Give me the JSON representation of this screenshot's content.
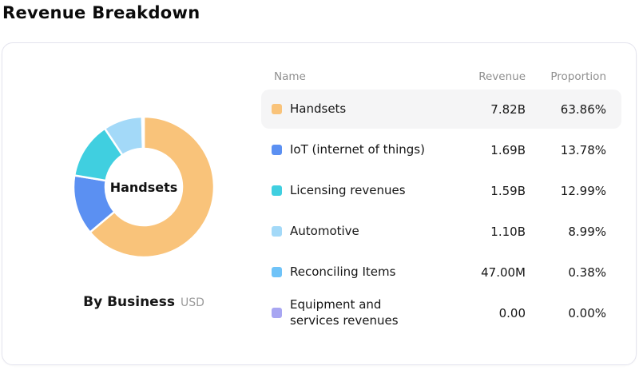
{
  "page": {
    "title": "Revenue Breakdown"
  },
  "caption": {
    "title": "By Business",
    "unit": "USD"
  },
  "table": {
    "headers": {
      "name": "Name",
      "revenue": "Revenue",
      "proportion": "Proportion"
    }
  },
  "chart_data": {
    "type": "pie",
    "subtype": "donut",
    "title": "By Business",
    "unit": "USD",
    "center_label": "Handsets",
    "start_angle_deg": 0,
    "direction": "clockwise",
    "inner_radius_ratio": 0.54,
    "legend_position": "right-table",
    "highlighted_series": "Handsets",
    "series": [
      {
        "name": "Handsets",
        "revenue": "7.82B",
        "proportion": "63.86%",
        "value": 63.86,
        "color": "#F9C37A"
      },
      {
        "name": "IoT (internet of things)",
        "revenue": "1.69B",
        "proportion": "13.78%",
        "value": 13.78,
        "color": "#5B90F2"
      },
      {
        "name": "Licensing revenues",
        "revenue": "1.59B",
        "proportion": "12.99%",
        "value": 12.99,
        "color": "#40CFE0"
      },
      {
        "name": "Automotive",
        "revenue": "1.10B",
        "proportion": "8.99%",
        "value": 8.99,
        "color": "#A3D9F8"
      },
      {
        "name": "Reconciling Items",
        "revenue": "47.00M",
        "proportion": "0.38%",
        "value": 0.38,
        "color": "#6FC3F8"
      },
      {
        "name": "Equipment and\nservices revenues",
        "revenue": "0.00",
        "proportion": "0.00%",
        "value": 0.0,
        "color": "#A8A6F2"
      }
    ]
  }
}
